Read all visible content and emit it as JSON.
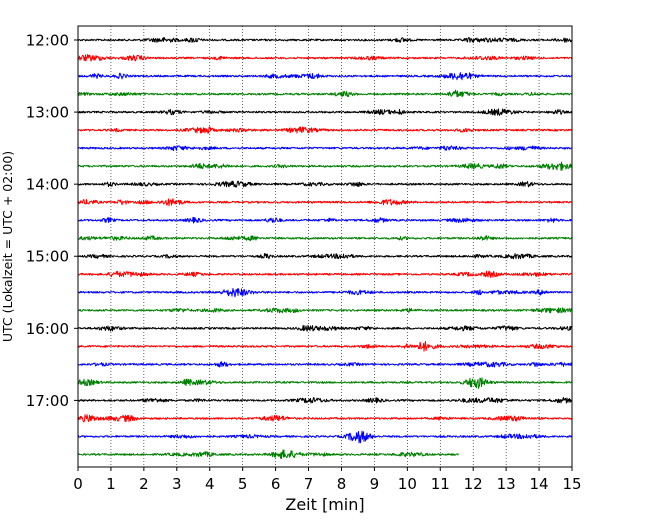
{
  "chart_data": {
    "type": "line",
    "title": "",
    "xlabel": "Zeit  [min]",
    "ylabel": "UTC (Lokalzeit = UTC + 02:00)",
    "xlim": [
      0,
      15
    ],
    "x_ticks": [
      0,
      1,
      2,
      3,
      4,
      5,
      6,
      7,
      8,
      9,
      10,
      11,
      12,
      13,
      14,
      15
    ],
    "x_tick_labels": [
      "0",
      "1",
      "2",
      "3",
      "4",
      "5",
      "6",
      "7",
      "8",
      "9",
      "10",
      "11",
      "12",
      "13",
      "14",
      "15"
    ],
    "y_tick_labels": [
      "12:00",
      "13:00",
      "14:00",
      "15:00",
      "16:00",
      "17:00"
    ],
    "y_tick_traces": [
      0,
      4,
      8,
      12,
      16,
      20
    ],
    "vertical_grid": true,
    "grid_style": "dotted",
    "legend": "none",
    "trace_colors": [
      "#000000",
      "#ff0000",
      "#0000ff",
      "#008000"
    ],
    "series": [
      {
        "start": "12:00",
        "x": [
          0,
          15
        ],
        "color": "#000000"
      },
      {
        "start": "12:15",
        "x": [
          0,
          15
        ],
        "color": "#ff0000"
      },
      {
        "start": "12:30",
        "x": [
          0,
          15
        ],
        "color": "#0000ff"
      },
      {
        "start": "12:45",
        "x": [
          0,
          15
        ],
        "color": "#008000"
      },
      {
        "start": "13:00",
        "x": [
          0,
          15
        ],
        "color": "#000000"
      },
      {
        "start": "13:15",
        "x": [
          0,
          15
        ],
        "color": "#ff0000"
      },
      {
        "start": "13:30",
        "x": [
          0,
          15
        ],
        "color": "#0000ff"
      },
      {
        "start": "13:45",
        "x": [
          0,
          15
        ],
        "color": "#008000"
      },
      {
        "start": "14:00",
        "x": [
          0,
          15
        ],
        "color": "#000000"
      },
      {
        "start": "14:15",
        "x": [
          0,
          15
        ],
        "color": "#ff0000"
      },
      {
        "start": "14:30",
        "x": [
          0,
          15
        ],
        "color": "#0000ff"
      },
      {
        "start": "14:45",
        "x": [
          0,
          15
        ],
        "color": "#008000"
      },
      {
        "start": "15:00",
        "x": [
          0,
          15
        ],
        "color": "#000000"
      },
      {
        "start": "15:15",
        "x": [
          0,
          15
        ],
        "color": "#ff0000"
      },
      {
        "start": "15:30",
        "x": [
          0,
          15
        ],
        "color": "#0000ff"
      },
      {
        "start": "15:45",
        "x": [
          0,
          15
        ],
        "color": "#008000"
      },
      {
        "start": "16:00",
        "x": [
          0,
          15
        ],
        "color": "#000000"
      },
      {
        "start": "16:15",
        "x": [
          0,
          15
        ],
        "color": "#ff0000"
      },
      {
        "start": "16:30",
        "x": [
          0,
          15
        ],
        "color": "#0000ff"
      },
      {
        "start": "16:45",
        "x": [
          0,
          15
        ],
        "color": "#008000"
      },
      {
        "start": "17:00",
        "x": [
          0,
          15
        ],
        "color": "#000000"
      },
      {
        "start": "17:15",
        "x": [
          0,
          15
        ],
        "color": "#ff0000"
      },
      {
        "start": "17:30",
        "x": [
          0,
          15
        ],
        "color": "#0000ff"
      },
      {
        "start": "17:45",
        "x": [
          0,
          11.55
        ],
        "color": "#008000"
      }
    ]
  }
}
